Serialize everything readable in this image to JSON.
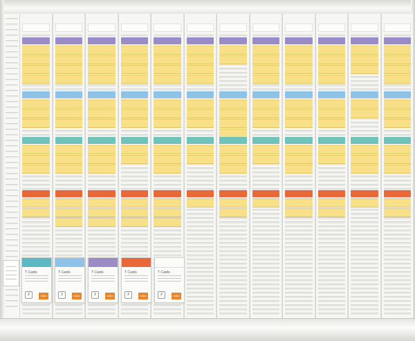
{
  "board": {
    "columns": 12,
    "band_colors": {
      "band1": "#9b8cc8",
      "band2": "#8fc2e8",
      "band3": "#6fc3bb",
      "band4": "#e8683a"
    },
    "card_color": "#f8e089",
    "card_occupancy": [
      [
        4,
        3,
        3,
        2
      ],
      [
        4,
        3,
        3,
        3
      ],
      [
        4,
        3,
        3,
        3
      ],
      [
        4,
        3,
        2,
        3
      ],
      [
        4,
        3,
        3,
        3
      ],
      [
        4,
        3,
        2,
        1
      ],
      [
        2,
        4,
        3,
        2
      ],
      [
        4,
        3,
        2,
        1
      ],
      [
        4,
        3,
        3,
        2
      ],
      [
        4,
        3,
        2,
        2
      ],
      [
        3,
        2,
        3,
        1
      ],
      [
        4,
        3,
        3,
        2
      ]
    ]
  },
  "packs": [
    {
      "color": "#5ab9c4",
      "title": "T Cards",
      "count": "2",
      "brand": "nobo"
    },
    {
      "color": "#8fc2e8",
      "title": "T Cards",
      "count": "2",
      "brand": "nobo"
    },
    {
      "color": "#9b8cc8",
      "title": "T Cards",
      "count": "2",
      "brand": "nobo"
    },
    {
      "color": "#e8683a",
      "title": "T Cards",
      "count": "2",
      "brand": "nobo"
    },
    {
      "color": "#fbfbfa",
      "title": "T Cards",
      "count": "2",
      "brand": "nobo"
    }
  ]
}
